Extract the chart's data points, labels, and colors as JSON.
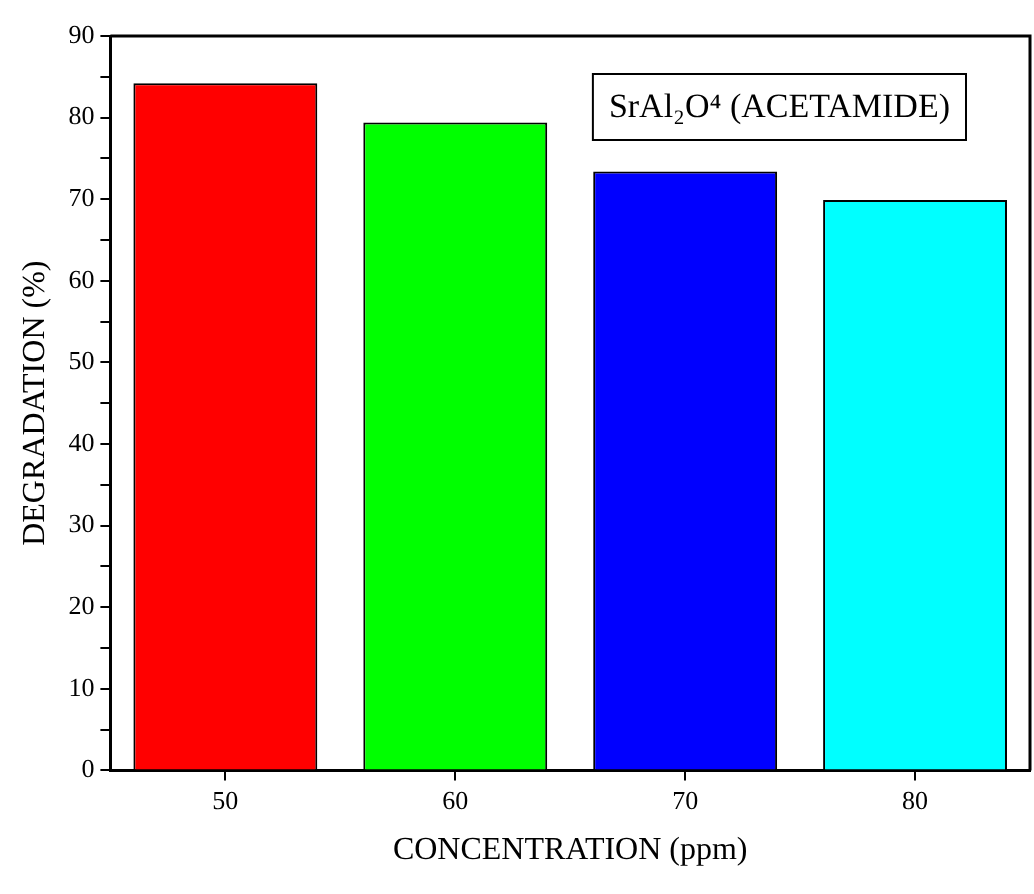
{
  "chart_data": {
    "type": "bar",
    "xlabel": "CONCENTRATION (ppm)",
    "ylabel": "DEGRADATION (%)",
    "categories": [
      "50",
      "60",
      "70",
      "80"
    ],
    "values": [
      84.2,
      79.4,
      73.4,
      69.9
    ],
    "colors": [
      "#ff0000",
      "#00ff00",
      "#0000ff",
      "#00ffff"
    ],
    "ylim": [
      0,
      90
    ],
    "yticks": [
      0,
      {
        "value": 5,
        "label": null
      },
      10,
      {
        "value": 15,
        "label": null
      },
      20,
      {
        "value": 25,
        "label": null
      },
      30,
      {
        "value": 35,
        "label": null
      },
      40,
      {
        "value": 45,
        "label": null
      },
      50,
      {
        "value": 55,
        "label": null
      },
      60,
      {
        "value": 65,
        "label": null
      },
      70,
      {
        "value": 75,
        "label": null
      },
      80,
      {
        "value": 85,
        "label": null
      },
      90
    ],
    "annotations": [
      "SrAl₂O⁴ (ACETAMIDE)"
    ],
    "grid": false,
    "legend": false
  }
}
